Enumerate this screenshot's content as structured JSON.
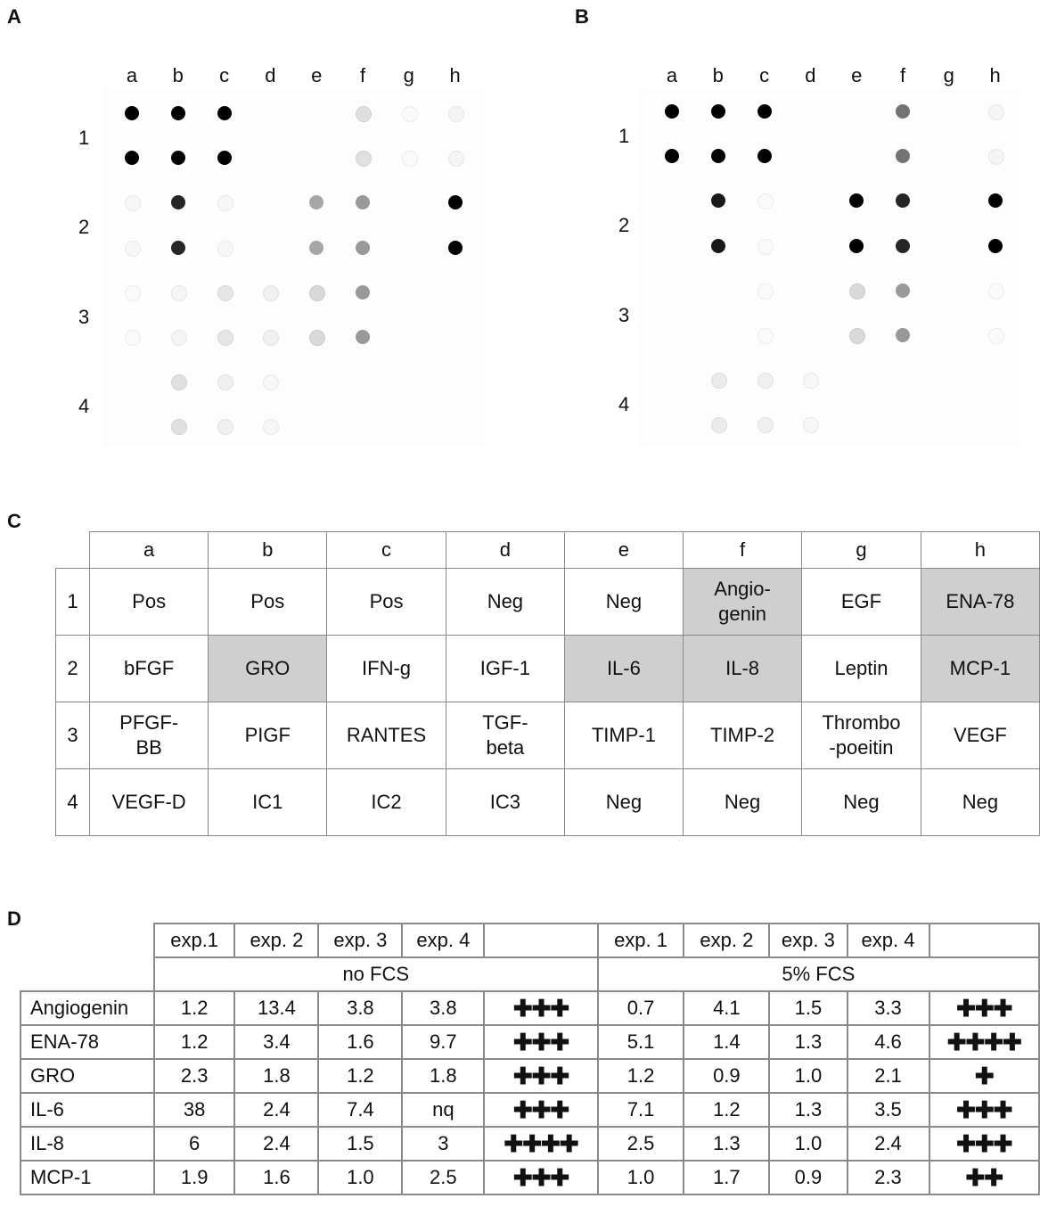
{
  "panels": {
    "a": {
      "label": "A"
    },
    "b": {
      "label": "B"
    },
    "c": {
      "label": "C"
    },
    "d": {
      "label": "D"
    }
  },
  "blot": {
    "columns": [
      "a",
      "b",
      "c",
      "d",
      "e",
      "f",
      "g",
      "h"
    ],
    "rows": [
      "1",
      "2",
      "3",
      "4"
    ],
    "spot_intensity_scale": "0 = blank, 1 = black",
    "A_spots": [
      [
        1.0,
        1.0,
        1.0,
        0.0,
        0.0,
        0.12,
        0.02,
        0.04
      ],
      [
        1.0,
        1.0,
        1.0,
        0.0,
        0.0,
        0.12,
        0.02,
        0.04
      ],
      [
        0.03,
        0.85,
        0.03,
        0.0,
        0.35,
        0.4,
        0.0,
        1.0
      ],
      [
        0.03,
        0.85,
        0.03,
        0.0,
        0.35,
        0.4,
        0.0,
        1.0
      ],
      [
        0.02,
        0.04,
        0.1,
        0.06,
        0.15,
        0.4,
        0.0,
        0.0
      ],
      [
        0.02,
        0.04,
        0.1,
        0.06,
        0.15,
        0.4,
        0.0,
        0.0
      ],
      [
        0.0,
        0.12,
        0.06,
        0.03,
        0.0,
        0.0,
        0.0,
        0.0
      ],
      [
        0.0,
        0.12,
        0.06,
        0.03,
        0.0,
        0.0,
        0.0,
        0.0
      ]
    ],
    "B_spots": [
      [
        1.0,
        1.0,
        1.0,
        0.0,
        0.0,
        0.55,
        0.0,
        0.04
      ],
      [
        1.0,
        1.0,
        1.0,
        0.0,
        0.0,
        0.55,
        0.0,
        0.04
      ],
      [
        0.0,
        0.9,
        0.02,
        0.0,
        1.0,
        0.85,
        0.0,
        1.0
      ],
      [
        0.0,
        0.9,
        0.02,
        0.0,
        1.0,
        0.85,
        0.0,
        1.0
      ],
      [
        0.0,
        0.0,
        0.02,
        0.0,
        0.15,
        0.4,
        0.0,
        0.02
      ],
      [
        0.0,
        0.0,
        0.02,
        0.0,
        0.15,
        0.4,
        0.0,
        0.02
      ],
      [
        0.0,
        0.08,
        0.06,
        0.03,
        0.0,
        0.0,
        0.0,
        0.0
      ],
      [
        0.0,
        0.08,
        0.06,
        0.03,
        0.0,
        0.0,
        0.0,
        0.0
      ]
    ]
  },
  "tableC": {
    "header": [
      "a",
      "b",
      "c",
      "d",
      "e",
      "f",
      "g",
      "h"
    ],
    "rows": [
      {
        "num": "1",
        "cells": [
          {
            "lines": [
              "Pos"
            ],
            "shaded": false
          },
          {
            "lines": [
              "Pos"
            ],
            "shaded": false
          },
          {
            "lines": [
              "Pos"
            ],
            "shaded": false
          },
          {
            "lines": [
              "Neg"
            ],
            "shaded": false
          },
          {
            "lines": [
              "Neg"
            ],
            "shaded": false
          },
          {
            "lines": [
              "Angio-",
              "genin"
            ],
            "shaded": true
          },
          {
            "lines": [
              "EGF"
            ],
            "shaded": false
          },
          {
            "lines": [
              "ENA-78"
            ],
            "shaded": true
          }
        ]
      },
      {
        "num": "2",
        "cells": [
          {
            "lines": [
              "bFGF"
            ],
            "shaded": false
          },
          {
            "lines": [
              "GRO"
            ],
            "shaded": true
          },
          {
            "lines": [
              "IFN-g"
            ],
            "shaded": false
          },
          {
            "lines": [
              "IGF-1"
            ],
            "shaded": false
          },
          {
            "lines": [
              "IL-6"
            ],
            "shaded": true
          },
          {
            "lines": [
              "IL-8"
            ],
            "shaded": true
          },
          {
            "lines": [
              "Leptin"
            ],
            "shaded": false
          },
          {
            "lines": [
              "MCP-1"
            ],
            "shaded": true
          }
        ]
      },
      {
        "num": "3",
        "cells": [
          {
            "lines": [
              "PFGF-",
              "BB"
            ],
            "shaded": false
          },
          {
            "lines": [
              "PIGF"
            ],
            "shaded": false
          },
          {
            "lines": [
              "RANTES"
            ],
            "shaded": false
          },
          {
            "lines": [
              "TGF-",
              "beta"
            ],
            "shaded": false
          },
          {
            "lines": [
              "TIMP-1"
            ],
            "shaded": false
          },
          {
            "lines": [
              "TIMP-2"
            ],
            "shaded": false
          },
          {
            "lines": [
              "Thrombo",
              "-poeitin"
            ],
            "shaded": false
          },
          {
            "lines": [
              "VEGF"
            ],
            "shaded": false
          }
        ]
      },
      {
        "num": "4",
        "cells": [
          {
            "lines": [
              "VEGF-D"
            ],
            "shaded": false
          },
          {
            "lines": [
              "IC1"
            ],
            "shaded": false
          },
          {
            "lines": [
              "IC2"
            ],
            "shaded": false
          },
          {
            "lines": [
              "IC3"
            ],
            "shaded": false
          },
          {
            "lines": [
              "Neg"
            ],
            "shaded": false
          },
          {
            "lines": [
              "Neg"
            ],
            "shaded": false
          },
          {
            "lines": [
              "Neg"
            ],
            "shaded": false
          },
          {
            "lines": [
              "Neg"
            ],
            "shaded": false
          }
        ]
      }
    ]
  },
  "tableD": {
    "exp_headers_left": [
      "exp.1",
      "exp. 2",
      "exp. 3",
      "exp. 4",
      ""
    ],
    "exp_headers_right": [
      "exp. 1",
      "exp. 2",
      "exp. 3",
      "exp. 4",
      ""
    ],
    "group_left": "no FCS",
    "group_right": "5% FCS",
    "rows": [
      {
        "name": "Angiogenin",
        "left": [
          "1.2",
          "13.4",
          "3.8",
          "3.8",
          "✚✚✚"
        ],
        "right": [
          "0.7",
          "4.1",
          "1.5",
          "3.3",
          "✚✚✚"
        ]
      },
      {
        "name": "ENA-78",
        "left": [
          "1.2",
          "3.4",
          "1.6",
          "9.7",
          "✚✚✚"
        ],
        "right": [
          "5.1",
          "1.4",
          "1.3",
          "4.6",
          "✚✚✚✚"
        ]
      },
      {
        "name": "GRO",
        "left": [
          "2.3",
          "1.8",
          "1.2",
          "1.8",
          "✚✚✚"
        ],
        "right": [
          "1.2",
          "0.9",
          "1.0",
          "2.1",
          "✚"
        ]
      },
      {
        "name": "IL-6",
        "left": [
          "38",
          "2.4",
          "7.4",
          "nq",
          "✚✚✚"
        ],
        "right": [
          "7.1",
          "1.2",
          "1.3",
          "3.5",
          "✚✚✚"
        ]
      },
      {
        "name": "IL-8",
        "left": [
          "6",
          "2.4",
          "1.5",
          "3",
          "✚✚✚✚"
        ],
        "right": [
          "2.5",
          "1.3",
          "1.0",
          "2.4",
          "✚✚✚"
        ]
      },
      {
        "name": "MCP-1",
        "left": [
          "1.9",
          "1.6",
          "1.0",
          "2.5",
          "✚✚✚"
        ],
        "right": [
          "1.0",
          "1.7",
          "0.9",
          "2.3",
          "✚✚"
        ]
      }
    ]
  }
}
